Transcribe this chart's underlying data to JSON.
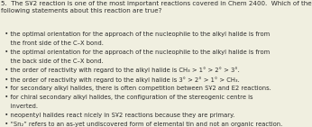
{
  "title": "5.  The SҰ2 reaction is one of the most important reactions covered in Chem 2400.  Which of the\nfollowing statements about this reaction are true?",
  "bullet_items": [
    [
      "  • the optimal orientation for the approach of the nucleophile to the alkyl halide is from",
      "     the front side of the C–X bond."
    ],
    [
      "  • the optimal orientation for the approach of the nucleophile to the alkyl halide is from",
      "     the back side of the C–X bond."
    ],
    [
      "  • the order of reactivity with regard to the alkyl halide is CH₃ > 1° > 2° > 3°."
    ],
    [
      "  • the order of reactivity with regard to the alkyl halide is 3° > 2° > 1° > CH₃."
    ],
    [
      "  • for secondary alkyl halides, there is often competition between SҰ2 and E2 reactions."
    ],
    [
      "  • for chiral secondary alkyl halides, the configuration of the stereogenic centre is",
      "     inverted."
    ],
    [
      "  • neopentyl halides react nicely in SҰ2 reactions because they are primary."
    ],
    [
      "  • “Sn₂” refers to an as-yet undiscovered form of elemental tin and not an organic reaction."
    ]
  ],
  "bg_color": "#f0efe0",
  "text_color": "#2d2d2d",
  "font_size": 4.9,
  "title_font_size": 5.1
}
